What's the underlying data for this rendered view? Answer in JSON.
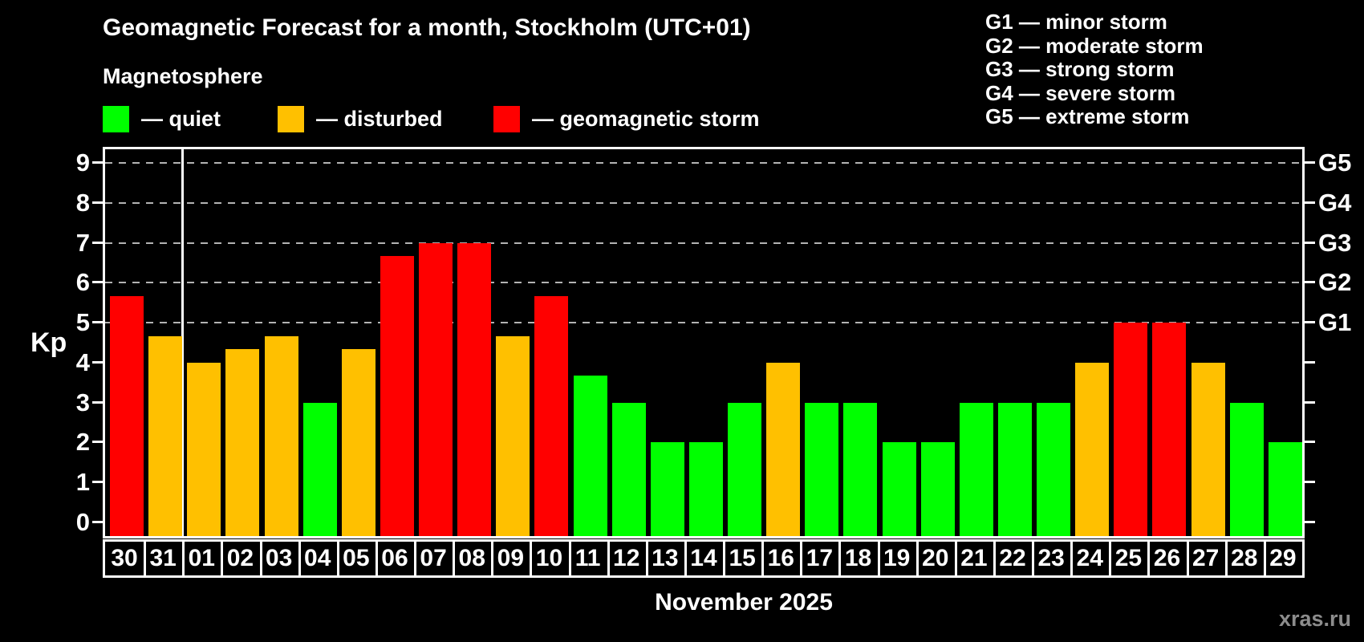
{
  "header": {
    "title": "Geomagnetic Forecast for a month, Stockholm (UTC+01)",
    "subtitle": "Magnetosphere"
  },
  "legend": {
    "items": [
      {
        "key": "quiet",
        "label": "— quiet",
        "color": "#00ff00"
      },
      {
        "key": "disturbed",
        "label": "— disturbed",
        "color": "#ffc000"
      },
      {
        "key": "storm",
        "label": "— geomagnetic storm",
        "color": "#ff0000"
      }
    ]
  },
  "storm_scale_legend": {
    "lines": [
      "G1 — minor storm",
      "G2 — moderate storm",
      "G3 — strong storm",
      "G4 — severe storm",
      "G5 — extreme storm"
    ]
  },
  "y_axis": {
    "label": "Kp",
    "ticks": [
      0,
      1,
      2,
      3,
      4,
      5,
      6,
      7,
      8,
      9
    ]
  },
  "right_axis": {
    "ticks": [
      0,
      1,
      2,
      3,
      4,
      5,
      6,
      7,
      8,
      9
    ],
    "labels": [
      {
        "kp": 5,
        "text": "G1"
      },
      {
        "kp": 6,
        "text": "G2"
      },
      {
        "kp": 7,
        "text": "G3"
      },
      {
        "kp": 8,
        "text": "G4"
      },
      {
        "kp": 9,
        "text": "G5"
      }
    ]
  },
  "x_axis": {
    "caption": "November 2025"
  },
  "watermark": "xras.ru",
  "colors": {
    "quiet": "#00ff00",
    "disturbed": "#ffc000",
    "storm": "#ff0000",
    "gridline": "#b3b3b3",
    "axis": "#ffffff",
    "background": "#000000",
    "watermark": "#8c8c8c"
  },
  "chart_data": {
    "type": "bar",
    "title": "Geomagnetic Forecast for a month, Stockholm (UTC+01)",
    "xlabel": "November 2025",
    "ylabel": "Kp",
    "ylim": [
      0,
      9
    ],
    "gridlines_at": [
      5,
      6,
      7,
      8,
      9
    ],
    "legend_position": "top-left",
    "month_separator_after_category": "31",
    "categories": [
      "30",
      "31",
      "01",
      "02",
      "03",
      "04",
      "05",
      "06",
      "07",
      "08",
      "09",
      "10",
      "11",
      "12",
      "13",
      "14",
      "15",
      "16",
      "17",
      "18",
      "19",
      "20",
      "21",
      "22",
      "23",
      "24",
      "25",
      "26",
      "27",
      "28",
      "29"
    ],
    "values": [
      5.67,
      4.67,
      4,
      4.33,
      4.67,
      3,
      4.33,
      6.67,
      7,
      7,
      4.67,
      5.67,
      3.67,
      3,
      2,
      2,
      3,
      4,
      3,
      3,
      2,
      2,
      3,
      3,
      3,
      4,
      5,
      5,
      4,
      3,
      2
    ],
    "status": [
      "storm",
      "disturbed",
      "disturbed",
      "disturbed",
      "disturbed",
      "quiet",
      "disturbed",
      "storm",
      "storm",
      "storm",
      "disturbed",
      "storm",
      "quiet",
      "quiet",
      "quiet",
      "quiet",
      "quiet",
      "disturbed",
      "quiet",
      "quiet",
      "quiet",
      "quiet",
      "quiet",
      "quiet",
      "quiet",
      "disturbed",
      "storm",
      "storm",
      "disturbed",
      "quiet",
      "quiet"
    ]
  }
}
